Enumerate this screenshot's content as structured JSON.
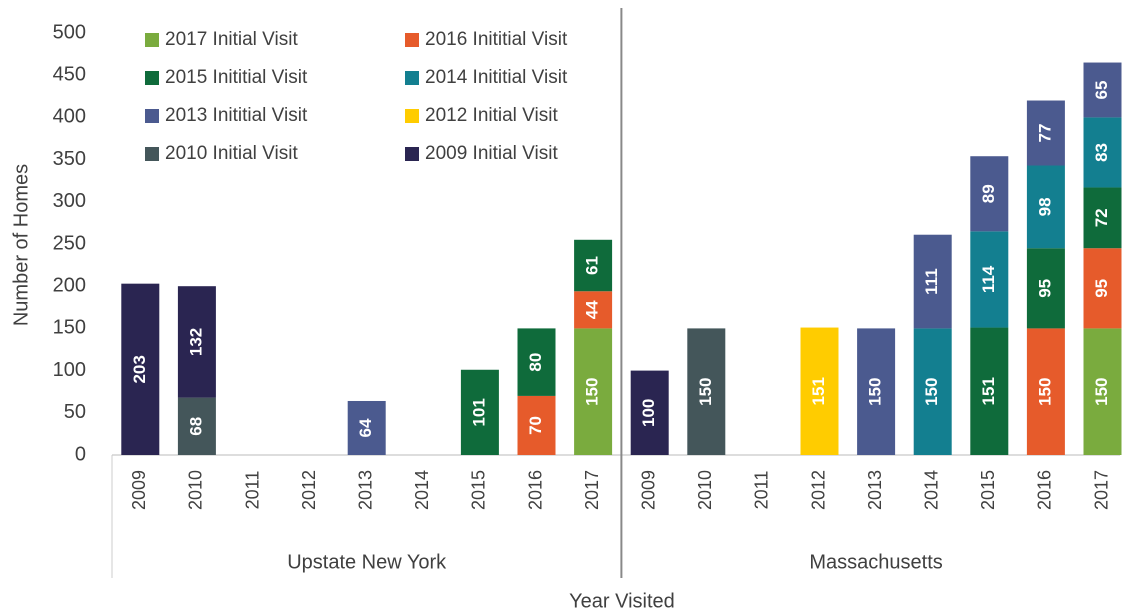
{
  "chart_data": {
    "type": "stacked_bar",
    "x_label": "Year Visited",
    "y_label": "Number of Homes",
    "groups": [
      {
        "name": "Upstate New York",
        "categories": [
          "2009",
          "2010",
          "2011",
          "2012",
          "2013",
          "2014",
          "2015",
          "2016",
          "2017"
        ]
      },
      {
        "name": "Massachusetts",
        "categories": [
          "2009",
          "2010",
          "2011",
          "2012",
          "2013",
          "2014",
          "2015",
          "2016",
          "2017"
        ]
      }
    ],
    "ylim": [
      0,
      500
    ],
    "yticks": [
      0,
      50,
      100,
      150,
      200,
      250,
      300,
      350,
      400,
      450,
      500
    ],
    "legend": "top-left",
    "series": [
      {
        "name": "2017 Initial Visit",
        "color": "#7aab3e",
        "values": [
          null,
          null,
          null,
          null,
          null,
          null,
          null,
          null,
          150,
          null,
          null,
          null,
          null,
          null,
          null,
          null,
          null,
          150
        ]
      },
      {
        "name": "2016 Inititial Visit",
        "color": "#e65b2b",
        "values": [
          null,
          null,
          null,
          null,
          null,
          null,
          null,
          70,
          44,
          null,
          null,
          null,
          null,
          null,
          null,
          null,
          150,
          95
        ]
      },
      {
        "name": "2015 Inititial Visit",
        "color": "#0f6b3b",
        "values": [
          null,
          null,
          null,
          null,
          null,
          null,
          101,
          80,
          61,
          null,
          null,
          null,
          null,
          null,
          null,
          151,
          95,
          72
        ]
      },
      {
        "name": "2014 Inititial Visit",
        "color": "#137f90",
        "values": [
          null,
          null,
          null,
          null,
          null,
          null,
          null,
          null,
          null,
          null,
          null,
          null,
          null,
          null,
          150,
          114,
          98,
          83
        ]
      },
      {
        "name": "2013 Inititial Visit",
        "color": "#4b5a8f",
        "values": [
          null,
          null,
          null,
          null,
          64,
          null,
          null,
          null,
          null,
          null,
          null,
          null,
          null,
          150,
          111,
          89,
          77,
          65
        ]
      },
      {
        "name": "2012 Initial Visit",
        "color": "#ffcc00",
        "values": [
          null,
          null,
          null,
          null,
          null,
          null,
          null,
          null,
          null,
          null,
          null,
          null,
          151,
          null,
          null,
          null,
          null,
          null
        ]
      },
      {
        "name": "2010 Initial Visit",
        "color": "#44565a",
        "values": [
          null,
          68,
          null,
          null,
          null,
          null,
          null,
          null,
          null,
          null,
          150,
          null,
          null,
          null,
          null,
          null,
          null,
          null
        ]
      },
      {
        "name": "2009 Initial Visit",
        "color": "#2a2551",
        "values": [
          203,
          132,
          null,
          null,
          null,
          null,
          null,
          null,
          null,
          100,
          null,
          null,
          null,
          null,
          null,
          null,
          null,
          null
        ]
      }
    ]
  }
}
